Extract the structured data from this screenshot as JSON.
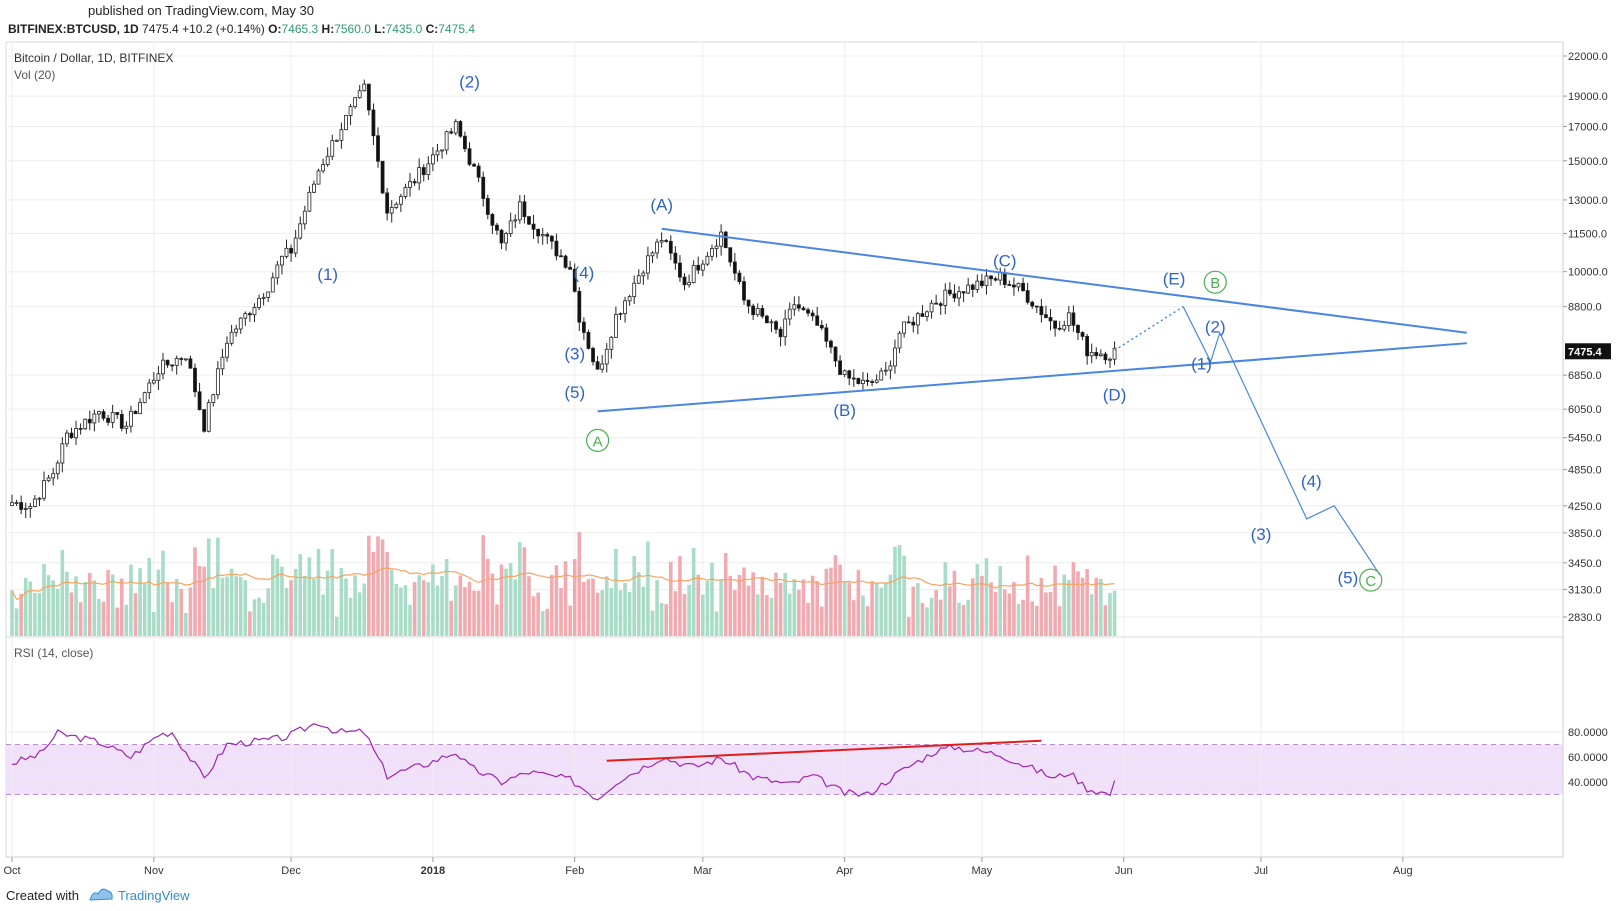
{
  "header": {
    "published": "published on TradingView.com, May 30",
    "symbol": "BITFINEX:BTCUSD, 1D",
    "last": "7475.4",
    "change": "+10.2 (+0.14%)",
    "o_label": "O:",
    "o": "7465.3",
    "h_label": "H:",
    "h": "7560.0",
    "l_label": "L:",
    "l": "7435.0",
    "c_label": "C:",
    "c": "7475.4"
  },
  "legend": {
    "title": "Bitcoin / Dollar, 1D, BITFINEX",
    "vol": "Vol (20)",
    "rsi": "RSI (14, close)"
  },
  "footer": {
    "created": "Created with",
    "brand": "TradingView"
  },
  "colors": {
    "up": "#2b2b2b",
    "down": "#111111",
    "wave": "#2f63c8",
    "line": "#4a86e0",
    "green": "#4caf50",
    "rsi": "#9c27b0",
    "rsiband": "#f1e0fa",
    "red": "#e21b1b",
    "volup": "#a9dcc6",
    "voldown": "#f2aab1",
    "volma": "#f4a460"
  },
  "chart_data": [
    {
      "type": "candlestick",
      "title": "Bitcoin / Dollar, 1D, BITFINEX",
      "x_start": "2017-10-01",
      "x_end": "2018-08-31",
      "x_ticks": [
        {
          "date": "2017-10-01",
          "label": "Oct"
        },
        {
          "date": "2017-11-01",
          "label": "Nov"
        },
        {
          "date": "2017-12-01",
          "label": "Dec"
        },
        {
          "date": "2018-01-01",
          "label": "2018"
        },
        {
          "date": "2018-02-01",
          "label": "Feb"
        },
        {
          "date": "2018-03-01",
          "label": "Mar"
        },
        {
          "date": "2018-04-01",
          "label": "Apr"
        },
        {
          "date": "2018-05-01",
          "label": "May"
        },
        {
          "date": "2018-06-01",
          "label": "Jun"
        },
        {
          "date": "2018-07-01",
          "label": "Jul"
        },
        {
          "date": "2018-08-01",
          "label": "Aug"
        }
      ],
      "y_scale": "log",
      "y_ticks": [
        "2830.0",
        "3130.0",
        "3450.0",
        "3850.0",
        "4250.0",
        "4850.0",
        "5450.0",
        "6050.0",
        "6850.0",
        "7475.4",
        "8800.0",
        "10000.0",
        "11500.0",
        "13000.0",
        "15000.0",
        "17000.0",
        "19000.0",
        "22000.0"
      ],
      "last_price": "7475.4",
      "price_anchors": [
        [
          "2017-10-01",
          4300
        ],
        [
          "2017-10-05",
          4250
        ],
        [
          "2017-10-10",
          4800
        ],
        [
          "2017-10-13",
          5500
        ],
        [
          "2017-10-20",
          6000
        ],
        [
          "2017-10-26",
          5700
        ],
        [
          "2017-11-02",
          7000
        ],
        [
          "2017-11-08",
          7400
        ],
        [
          "2017-11-12",
          5700
        ],
        [
          "2017-11-17",
          7800
        ],
        [
          "2017-11-26",
          9500
        ],
        [
          "2017-11-29",
          10500
        ],
        [
          "2017-12-01",
          10800
        ],
        [
          "2017-12-07",
          14500
        ],
        [
          "2017-12-12",
          17000
        ],
        [
          "2017-12-17",
          19500
        ],
        [
          "2017-12-22",
          12500
        ],
        [
          "2017-12-28",
          14000
        ],
        [
          "2018-01-06",
          17000
        ],
        [
          "2018-01-10",
          14500
        ],
        [
          "2018-01-16",
          11000
        ],
        [
          "2018-01-20",
          12700
        ],
        [
          "2018-01-26",
          11200
        ],
        [
          "2018-01-31",
          10200
        ],
        [
          "2018-02-02",
          8500
        ],
        [
          "2018-02-06",
          6900
        ],
        [
          "2018-02-10",
          8500
        ],
        [
          "2018-02-16",
          10200
        ],
        [
          "2018-02-20",
          11300
        ],
        [
          "2018-02-25",
          9600
        ],
        [
          "2018-03-05",
          11500
        ],
        [
          "2018-03-10",
          9000
        ],
        [
          "2018-03-18",
          7900
        ],
        [
          "2018-03-21",
          8900
        ],
        [
          "2018-03-26",
          8200
        ],
        [
          "2018-04-01",
          6800
        ],
        [
          "2018-04-06",
          6600
        ],
        [
          "2018-04-10",
          6900
        ],
        [
          "2018-04-13",
          8000
        ],
        [
          "2018-04-20",
          8900
        ],
        [
          "2018-04-25",
          9300
        ],
        [
          "2018-05-05",
          9800
        ],
        [
          "2018-05-10",
          9300
        ],
        [
          "2018-05-17",
          8200
        ],
        [
          "2018-05-20",
          8500
        ],
        [
          "2018-05-24",
          7500
        ],
        [
          "2018-05-29",
          7400
        ],
        [
          "2018-05-30",
          7475
        ]
      ],
      "annotations": [
        {
          "label": "(1)",
          "date": "2017-12-09",
          "price": 9700
        },
        {
          "label": "(2)",
          "date": "2018-01-09",
          "price": 19600
        },
        {
          "label": "(3)",
          "date": "2018-02-01",
          "price": 7250
        },
        {
          "label": "(4)",
          "date": "2018-02-03",
          "price": 9750
        },
        {
          "label": "(5)",
          "date": "2018-02-01",
          "price": 6300
        },
        {
          "label": "A",
          "date": "2018-02-06",
          "price": 5300,
          "circled": true
        },
        {
          "label": "(A)",
          "date": "2018-02-20",
          "price": 12500
        },
        {
          "label": "(B)",
          "date": "2018-04-01",
          "price": 5900
        },
        {
          "label": "(C)",
          "date": "2018-05-06",
          "price": 10200
        },
        {
          "label": "(D)",
          "date": "2018-05-30",
          "price": 6250
        },
        {
          "label": "(E)",
          "date": "2018-06-12",
          "price": 9550
        },
        {
          "label": "B",
          "date": "2018-06-21",
          "price": 9450,
          "circled": true
        },
        {
          "label": "(1)",
          "date": "2018-06-18",
          "price": 7000
        },
        {
          "label": "(2)",
          "date": "2018-06-21",
          "price": 8000
        },
        {
          "label": "(3)",
          "date": "2018-07-01",
          "price": 3750
        },
        {
          "label": "(4)",
          "date": "2018-07-12",
          "price": 4550
        },
        {
          "label": "(5)",
          "date": "2018-07-20",
          "price": 3200
        },
        {
          "label": "C",
          "date": "2018-07-25",
          "price": 3180,
          "circled": true
        }
      ],
      "trendlines": [
        {
          "name": "upper",
          "from": [
            "2018-02-20",
            11700
          ],
          "to": [
            "2018-08-15",
            8000
          ]
        },
        {
          "name": "lower",
          "from": [
            "2018-02-06",
            6000
          ],
          "to": [
            "2018-08-15",
            7700
          ]
        }
      ],
      "projection": {
        "dotted": [
          [
            "2018-05-30",
            7500
          ],
          [
            "2018-06-14",
            8800
          ]
        ],
        "path": [
          [
            "2018-06-14",
            8800
          ],
          [
            "2018-06-20",
            7200
          ],
          [
            "2018-06-22",
            8000
          ],
          [
            "2018-07-11",
            4050
          ],
          [
            "2018-07-17",
            4250
          ],
          [
            "2018-07-27",
            3300
          ]
        ]
      }
    },
    {
      "type": "bar",
      "title": "Vol (20)",
      "series": "daily volume, green = up day, red = down day, orange line = 20-day MA"
    },
    {
      "type": "line",
      "title": "RSI (14, close)",
      "y_ticks": [
        "80.0000",
        "60.0000",
        "40.0000"
      ],
      "band": [
        30,
        70
      ],
      "rsi_anchors": [
        [
          "2017-10-01",
          55
        ],
        [
          "2017-10-07",
          62
        ],
        [
          "2017-10-11",
          79
        ],
        [
          "2017-10-20",
          72
        ],
        [
          "2017-10-27",
          60
        ],
        [
          "2017-11-02",
          78
        ],
        [
          "2017-11-05",
          80
        ],
        [
          "2017-11-12",
          43
        ],
        [
          "2017-11-17",
          70
        ],
        [
          "2017-11-27",
          74
        ],
        [
          "2017-11-30",
          76
        ],
        [
          "2017-12-07",
          88
        ],
        [
          "2017-12-11",
          80
        ],
        [
          "2017-12-17",
          80
        ],
        [
          "2017-12-22",
          45
        ],
        [
          "2017-12-31",
          55
        ],
        [
          "2018-01-06",
          64
        ],
        [
          "2018-01-09",
          52
        ],
        [
          "2018-01-16",
          40
        ],
        [
          "2018-01-22",
          48
        ],
        [
          "2018-01-31",
          42
        ],
        [
          "2018-02-06",
          27
        ],
        [
          "2018-02-10",
          40
        ],
        [
          "2018-02-20",
          60
        ],
        [
          "2018-02-27",
          52
        ],
        [
          "2018-03-05",
          59
        ],
        [
          "2018-03-12",
          44
        ],
        [
          "2018-03-20",
          38
        ],
        [
          "2018-03-25",
          45
        ],
        [
          "2018-04-01",
          31
        ],
        [
          "2018-04-06",
          30
        ],
        [
          "2018-04-13",
          48
        ],
        [
          "2018-04-21",
          65
        ],
        [
          "2018-04-25",
          68
        ],
        [
          "2018-05-05",
          62
        ],
        [
          "2018-05-10",
          54
        ],
        [
          "2018-05-17",
          43
        ],
        [
          "2018-05-20",
          48
        ],
        [
          "2018-05-24",
          35
        ],
        [
          "2018-05-29",
          30
        ],
        [
          "2018-05-30",
          39
        ]
      ],
      "divergence_line": {
        "from": [
          "2018-02-08",
          57
        ],
        "to": [
          "2018-05-14",
          73
        ]
      }
    }
  ]
}
